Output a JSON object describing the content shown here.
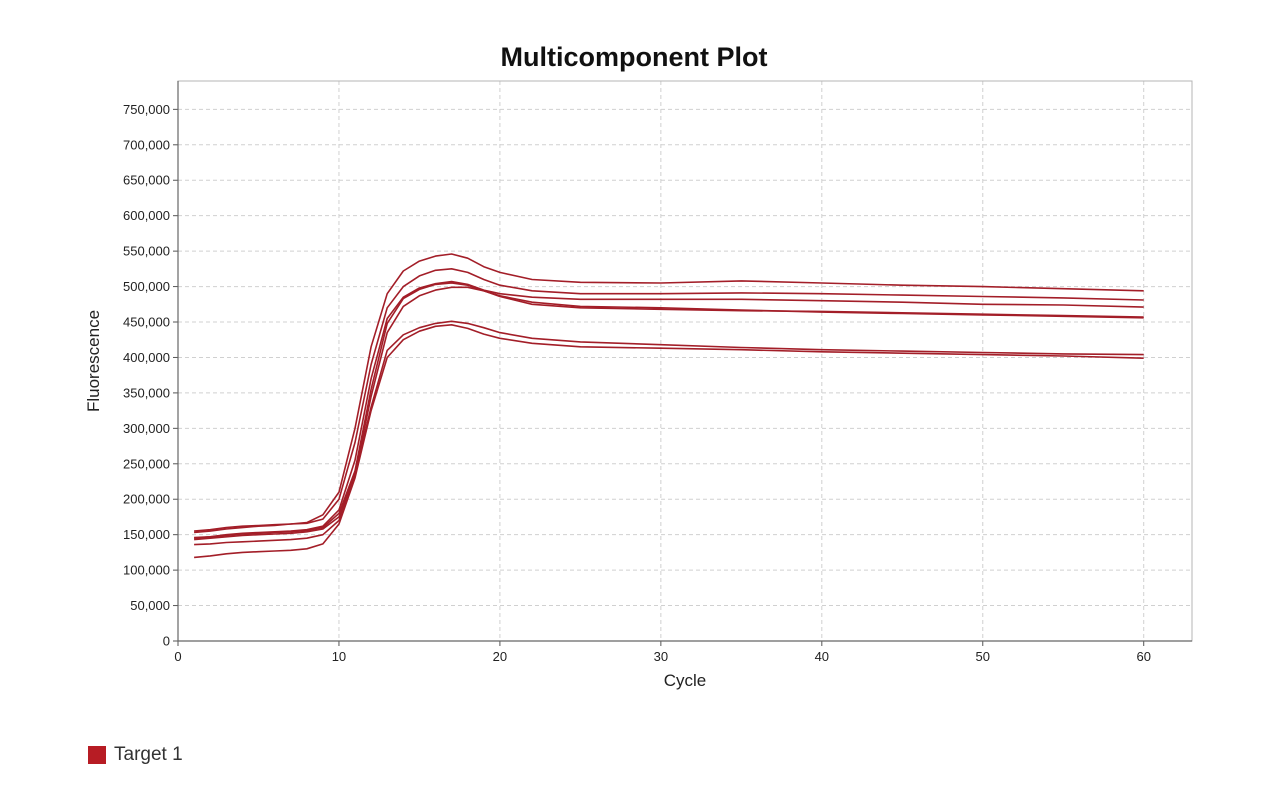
{
  "chart_data": {
    "type": "line",
    "title": "Multicomponent Plot",
    "xlabel": "Cycle",
    "ylabel": "Fluorescence",
    "xlim": [
      0,
      63
    ],
    "ylim": [
      0,
      790000
    ],
    "xticks": [
      0,
      10,
      20,
      30,
      40,
      50,
      60
    ],
    "yticks": [
      0,
      50000,
      100000,
      150000,
      200000,
      250000,
      300000,
      350000,
      400000,
      450000,
      500000,
      550000,
      600000,
      650000,
      700000,
      750000
    ],
    "ytick_labels": [
      "0",
      "50,000",
      "100,000",
      "150,000",
      "200,000",
      "250,000",
      "300,000",
      "350,000",
      "400,000",
      "450,000",
      "500,000",
      "550,000",
      "600,000",
      "650,000",
      "700,000",
      "750,000"
    ],
    "grid": true,
    "legend": [
      {
        "name": "Target 1",
        "color": "#b71c24"
      }
    ],
    "line_color": "#a31e28",
    "series": [
      {
        "x": [
          1,
          2,
          3,
          4,
          5,
          6,
          7,
          8,
          9,
          10,
          11,
          12,
          13,
          14,
          15,
          16,
          17,
          18,
          19,
          20,
          22,
          25,
          30,
          35,
          40,
          45,
          50,
          55,
          60
        ],
        "y": [
          155000,
          157000,
          160000,
          162000,
          163000,
          164000,
          165000,
          167000,
          178000,
          210000,
          300000,
          415000,
          490000,
          522000,
          536000,
          543000,
          546000,
          540000,
          528000,
          520000,
          510000,
          506000,
          505000,
          508000,
          505000,
          502000,
          500000,
          497000,
          494000
        ]
      },
      {
        "x": [
          1,
          2,
          3,
          4,
          5,
          6,
          7,
          8,
          9,
          10,
          11,
          12,
          13,
          14,
          15,
          16,
          17,
          18,
          19,
          20,
          22,
          25,
          30,
          35,
          40,
          45,
          50,
          55,
          60
        ],
        "y": [
          153000,
          155000,
          158000,
          160000,
          162000,
          163000,
          165000,
          166000,
          172000,
          200000,
          280000,
          390000,
          470000,
          500000,
          515000,
          523000,
          525000,
          520000,
          510000,
          502000,
          494000,
          490000,
          490000,
          491000,
          490000,
          488000,
          486000,
          484000,
          481000
        ]
      },
      {
        "x": [
          1,
          2,
          3,
          4,
          5,
          6,
          7,
          8,
          9,
          10,
          11,
          12,
          13,
          14,
          15,
          16,
          17,
          18,
          19,
          20,
          22,
          25,
          30,
          35,
          40,
          45,
          50,
          55,
          60
        ],
        "y": [
          146000,
          147000,
          150000,
          152000,
          153000,
          154000,
          155000,
          157000,
          162000,
          185000,
          255000,
          370000,
          455000,
          485000,
          498000,
          504000,
          507000,
          503000,
          495000,
          490000,
          485000,
          482000,
          482000,
          482000,
          480000,
          478000,
          475000,
          474000,
          471000
        ]
      },
      {
        "x": [
          1,
          2,
          3,
          4,
          5,
          6,
          7,
          8,
          9,
          10,
          11,
          12,
          13,
          14,
          15,
          16,
          17,
          18,
          19,
          20,
          22,
          25,
          30,
          35,
          40,
          45,
          50,
          55,
          60
        ],
        "y": [
          145000,
          147000,
          149000,
          151000,
          152000,
          153000,
          154000,
          156000,
          160000,
          180000,
          240000,
          355000,
          448000,
          483000,
          496000,
          503000,
          505000,
          502000,
          494000,
          487000,
          478000,
          472000,
          470000,
          467000,
          464000,
          462000,
          460000,
          458000,
          456000
        ]
      },
      {
        "x": [
          1,
          2,
          3,
          4,
          5,
          6,
          7,
          8,
          9,
          10,
          11,
          12,
          13,
          14,
          15,
          16,
          17,
          18,
          19,
          20,
          22,
          25,
          30,
          35,
          40,
          45,
          50,
          55,
          60
        ],
        "y": [
          143000,
          145000,
          147000,
          149000,
          150000,
          151000,
          152000,
          154000,
          158000,
          175000,
          235000,
          345000,
          435000,
          472000,
          487000,
          495000,
          499000,
          499000,
          494000,
          486000,
          475000,
          470000,
          468000,
          466000,
          465000,
          463000,
          461000,
          459000,
          457000
        ]
      },
      {
        "x": [
          1,
          2,
          3,
          4,
          5,
          6,
          7,
          8,
          9,
          10,
          11,
          12,
          13,
          14,
          15,
          16,
          17,
          18,
          19,
          20,
          22,
          25,
          30,
          35,
          40,
          45,
          50,
          55,
          60
        ],
        "y": [
          136000,
          137000,
          139000,
          140000,
          141000,
          142000,
          143000,
          145000,
          150000,
          170000,
          235000,
          330000,
          410000,
          432000,
          442000,
          448000,
          451000,
          448000,
          442000,
          435000,
          427000,
          422000,
          418000,
          414000,
          411000,
          409000,
          407000,
          405000,
          404000
        ]
      },
      {
        "x": [
          1,
          2,
          3,
          4,
          5,
          6,
          7,
          8,
          9,
          10,
          11,
          12,
          13,
          14,
          15,
          16,
          17,
          18,
          19,
          20,
          22,
          25,
          30,
          35,
          40,
          45,
          50,
          55,
          60
        ],
        "y": [
          118000,
          120000,
          123000,
          125000,
          126000,
          127000,
          128000,
          130000,
          137000,
          165000,
          230000,
          325000,
          400000,
          425000,
          437000,
          444000,
          446000,
          441000,
          433000,
          427000,
          420000,
          415000,
          413000,
          411000,
          408000,
          406000,
          404000,
          402000,
          399000
        ]
      }
    ]
  }
}
